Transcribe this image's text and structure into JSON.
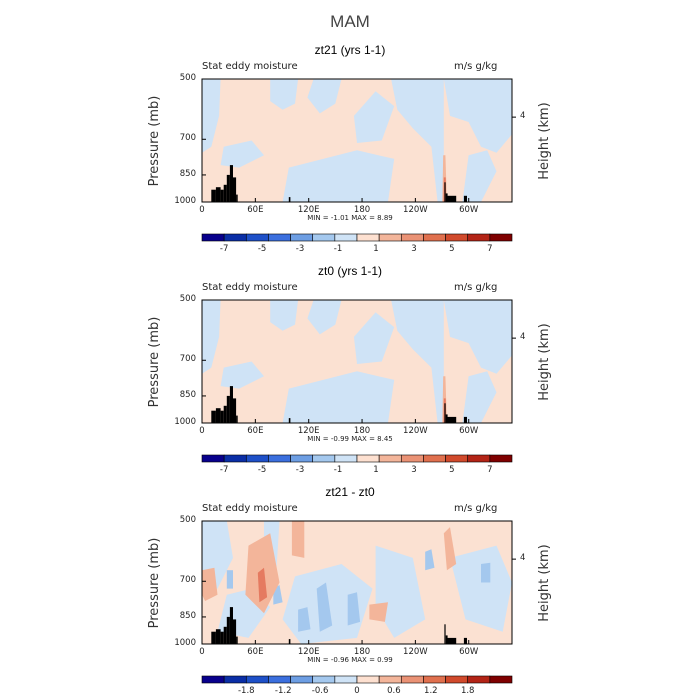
{
  "colors": {
    "panel_fill": "#fbe1d2",
    "neg_light": "#cfe3f6",
    "neg_mid": "#a4c8ee",
    "neg_dark": "#6d9ee3",
    "pos_mid": "#f3b59a",
    "pos_dark": "#e57a60",
    "land": "#000000",
    "frame": "#000000"
  },
  "chart_data": {
    "type": "heatmap",
    "title": "MAM",
    "panels": [
      {
        "title": "zt21 (yrs 1-1)",
        "left_label": "Stat eddy moisture",
        "right_label": "m/s g/kg",
        "ylabel": "Pressure (mb)",
        "y2label": "Height (km)",
        "y_ticks": [
          "500",
          "700",
          "850",
          "1000"
        ],
        "y2_ticks": [
          "4"
        ],
        "x_ticks": [
          "0",
          "60E",
          "120E",
          "180",
          "120W",
          "60W"
        ],
        "min_max_text": "MIN =   -1.01   MAX =    8.89",
        "min": -1.01,
        "max": 8.89,
        "colorbar_labels": [
          "-7",
          "-5",
          "-3",
          "-1",
          "1",
          "3",
          "5",
          "7"
        ],
        "colorbar_colors": [
          "#08008c",
          "#0a2ea6",
          "#1e50c8",
          "#3b6fde",
          "#6d9ee3",
          "#a4c8ee",
          "#cfe3f6",
          "#fde0d0",
          "#f3b59a",
          "#ea9275",
          "#e0704e",
          "#d14a2c",
          "#b32416",
          "#7f0000"
        ]
      },
      {
        "title": "zt0 (yrs 1-1)",
        "left_label": "Stat eddy moisture",
        "right_label": "m/s g/kg",
        "ylabel": "Pressure (mb)",
        "y2label": "Height (km)",
        "y_ticks": [
          "500",
          "700",
          "850",
          "1000"
        ],
        "y2_ticks": [
          "4"
        ],
        "x_ticks": [
          "0",
          "60E",
          "120E",
          "180",
          "120W",
          "60W"
        ],
        "min_max_text": "MIN =   -0.99   MAX =    8.45",
        "min": -0.99,
        "max": 8.45,
        "colorbar_labels": [
          "-7",
          "-5",
          "-3",
          "-1",
          "1",
          "3",
          "5",
          "7"
        ],
        "colorbar_colors": [
          "#08008c",
          "#0a2ea6",
          "#1e50c8",
          "#3b6fde",
          "#6d9ee3",
          "#a4c8ee",
          "#cfe3f6",
          "#fde0d0",
          "#f3b59a",
          "#ea9275",
          "#e0704e",
          "#d14a2c",
          "#b32416",
          "#7f0000"
        ]
      },
      {
        "title": "zt21 - zt0",
        "left_label": "Stat eddy moisture",
        "right_label": "m/s g/kg",
        "ylabel": "Pressure (mb)",
        "y2label": "Height (km)",
        "y_ticks": [
          "500",
          "700",
          "850",
          "1000"
        ],
        "y2_ticks": [
          "4"
        ],
        "x_ticks": [
          "0",
          "60E",
          "120E",
          "180",
          "120W",
          "60W"
        ],
        "min_max_text": "MIN =   -0.96   MAX =    0.99",
        "min": -0.96,
        "max": 0.99,
        "colorbar_labels": [
          "-1.8",
          "-1.2",
          "-0.6",
          "0",
          "0.6",
          "1.2",
          "1.8"
        ],
        "colorbar_colors": [
          "#08008c",
          "#0a2ea6",
          "#1e50c8",
          "#3b6fde",
          "#6d9ee3",
          "#a4c8ee",
          "#cfe3f6",
          "#fde0d0",
          "#f3b59a",
          "#ea9275",
          "#e0704e",
          "#d14a2c",
          "#b32416",
          "#7f0000"
        ]
      }
    ]
  }
}
